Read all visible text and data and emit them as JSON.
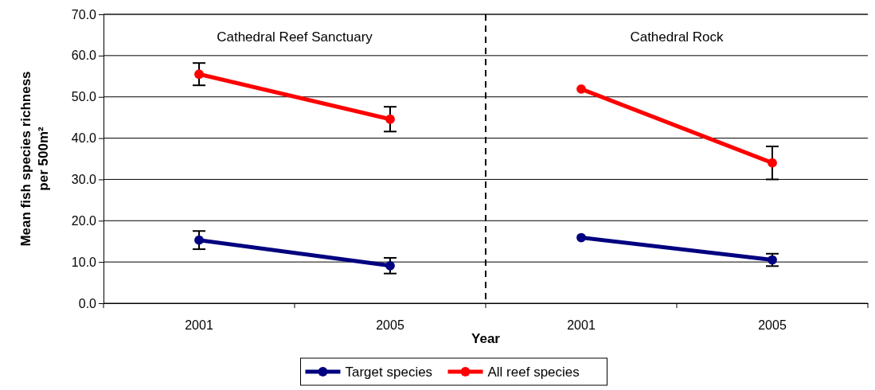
{
  "chart_data": {
    "type": "line",
    "xlabel": "Year",
    "ylabel": "Mean fish species richness\nper 500m²",
    "categories": [
      "2001",
      "2005",
      "2001",
      "2005"
    ],
    "series": [
      {
        "name": "Target species",
        "color": "#000080",
        "values": [
          15.3,
          9.1,
          null,
          null
        ],
        "errors": [
          2.2,
          1.9,
          null,
          null
        ]
      },
      {
        "name": "All reef species",
        "color": "#ff0000",
        "values": [
          55.5,
          44.6,
          null,
          null
        ],
        "errors": [
          2.7,
          3.0,
          null,
          null
        ]
      },
      {
        "color": "#000080",
        "values": [
          null,
          null,
          15.9,
          10.5
        ],
        "errors": [
          null,
          null,
          null,
          1.5
        ]
      },
      {
        "color": "#ff0000",
        "values": [
          null,
          null,
          51.9,
          34.0
        ],
        "errors": [
          null,
          null,
          null,
          4.0
        ]
      }
    ],
    "annotations": [
      "Cathedral Reef Sanctuary",
      "Cathedral Rock"
    ],
    "ylim": [
      0,
      70
    ],
    "yticks": [
      {
        "value": 0,
        "label": "0.0"
      },
      {
        "value": 10,
        "label": "10.0"
      },
      {
        "value": 20,
        "label": "20.0"
      },
      {
        "value": 30,
        "label": "30.0"
      },
      {
        "value": 40,
        "label": "40.0"
      },
      {
        "value": 50,
        "label": "50.0"
      },
      {
        "value": 60,
        "label": "60.0"
      },
      {
        "value": 70,
        "label": "70.0"
      }
    ],
    "grid": "y",
    "legend": "bottom",
    "marker": "circle",
    "line_style": "solid"
  }
}
